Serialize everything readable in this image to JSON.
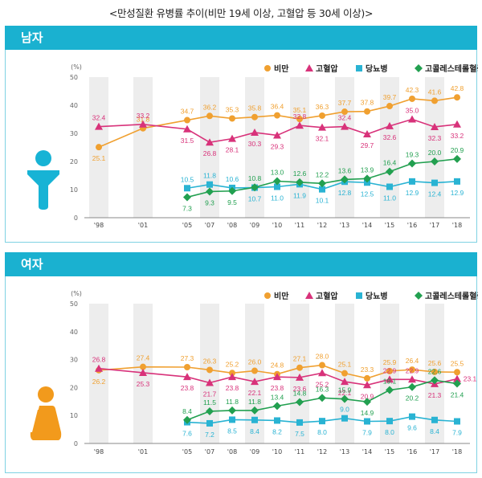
{
  "title": "<만성질환 유병률 추이(비만 19세 이상, 고혈압 등 30세 이상)>",
  "colors": {
    "header": "#1ab1d0",
    "obesity": "#f0a030",
    "hypertension": "#d8327a",
    "diabetes": "#29b3d3",
    "hypercholesterolemia": "#22a050",
    "male_icon": "#17b3d5",
    "female_icon": "#f29a1c",
    "band": "#ededed"
  },
  "chart_data": [
    {
      "type": "line",
      "panel": "남자",
      "icon": "male-person-icon",
      "x": [
        "'98",
        "'01",
        "'05",
        "'07",
        "'08",
        "'09",
        "'10",
        "'11",
        "'12",
        "'13",
        "'14",
        "'15",
        "'16",
        "'17",
        "'18"
      ],
      "y_unit": "(%)",
      "ylim": [
        0,
        50
      ],
      "yticks": [
        "0",
        "10",
        "20",
        "30",
        "40",
        "50"
      ],
      "legend_position": "top-right",
      "series": [
        {
          "name": "비만",
          "marker": "circle",
          "values": [
            25.1,
            31.8,
            34.7,
            36.2,
            35.3,
            35.8,
            36.4,
            35.1,
            36.3,
            37.7,
            37.8,
            39.7,
            42.3,
            41.6,
            42.8
          ],
          "labels": [
            "25.1",
            "31.8",
            "34.7",
            "36.2",
            "35.3",
            "35.8",
            "36.4",
            "35.1",
            "36.3",
            "37.7",
            "37.8",
            "39.7",
            "42.3",
            "41.6",
            "42.8"
          ]
        },
        {
          "name": "고혈압",
          "marker": "triangle",
          "values": [
            32.4,
            33.2,
            31.5,
            26.8,
            28.1,
            30.3,
            29.3,
            32.8,
            32.1,
            32.4,
            29.7,
            32.6,
            35.0,
            32.3,
            33.2
          ],
          "labels": [
            "32.4",
            "33.2",
            "31.5",
            "26.8",
            "28.1",
            "30.3",
            "29.3",
            "32.8",
            "32.1",
            "32.4",
            "29.7",
            "32.6",
            "35.0",
            "32.3",
            "33.2"
          ]
        },
        {
          "name": "당뇨병",
          "marker": "square",
          "values": [
            null,
            null,
            10.5,
            11.8,
            10.6,
            10.7,
            11.0,
            11.9,
            10.1,
            12.8,
            12.5,
            11.0,
            12.9,
            12.4,
            12.9
          ],
          "labels": [
            "",
            "",
            "10.5",
            "11.8",
            "10.6",
            "10.7",
            "11.0",
            "11.9",
            "10.1",
            "12.8",
            "12.5",
            "11.0",
            "12.9",
            "12.4",
            "12.9"
          ]
        },
        {
          "name": "고콜레스테롤혈증",
          "marker": "diamond",
          "values": [
            null,
            null,
            7.3,
            9.3,
            9.5,
            10.8,
            13.0,
            12.6,
            12.2,
            13.6,
            13.9,
            16.4,
            19.3,
            20.0,
            20.9
          ],
          "labels": [
            "",
            "",
            "7.3",
            "9.3",
            "9.5",
            "10.8",
            "13.0",
            "12.6",
            "12.2",
            "13.6",
            "13.9",
            "16.4",
            "19.3",
            "20.0",
            "20.9"
          ]
        }
      ]
    },
    {
      "type": "line",
      "panel": "여자",
      "icon": "female-person-icon",
      "x": [
        "'98",
        "'01",
        "'05",
        "'07",
        "'08",
        "'09",
        "'10",
        "'11",
        "'12",
        "'13",
        "'14",
        "'15",
        "'16",
        "'17",
        "'18"
      ],
      "y_unit": "(%)",
      "ylim": [
        0,
        50
      ],
      "yticks": [
        "0",
        "10",
        "20",
        "30",
        "40",
        "50"
      ],
      "legend_position": "top-right",
      "series": [
        {
          "name": "비만",
          "marker": "circle",
          "values": [
            26.2,
            27.4,
            27.3,
            26.3,
            25.2,
            26.0,
            24.8,
            27.1,
            28.0,
            25.1,
            23.3,
            25.9,
            26.4,
            25.6,
            25.5
          ],
          "labels": [
            "26.2",
            "27.4",
            "27.3",
            "26.3",
            "25.2",
            "26.0",
            "24.8",
            "27.1",
            "28.0",
            "25.1",
            "23.3",
            "25.9",
            "26.4",
            "25.6",
            "25.5"
          ]
        },
        {
          "name": "고혈압",
          "marker": "triangle",
          "values": [
            26.8,
            25.3,
            23.8,
            21.7,
            23.8,
            22.1,
            23.8,
            23.6,
            25.2,
            22.1,
            20.9,
            22.9,
            22.9,
            21.3,
            23.1
          ],
          "labels": [
            "26.8",
            "25.3",
            "23.8",
            "21.7",
            "23.8",
            "22.1",
            "23.8",
            "23.6",
            "25.2",
            "22.1",
            "20.9",
            "22.9",
            "22.9",
            "21.3",
            "23.1"
          ]
        },
        {
          "name": "당뇨병",
          "marker": "square",
          "values": [
            null,
            null,
            7.6,
            7.2,
            8.5,
            8.4,
            8.2,
            7.5,
            8.0,
            9.0,
            7.9,
            8.0,
            9.6,
            8.4,
            7.9
          ],
          "labels": [
            "",
            "",
            "7.6",
            "7.2",
            "8.5",
            "8.4",
            "8.2",
            "7.5",
            "8.0",
            "9.0",
            "7.9",
            "8.0",
            "9.6",
            "8.4",
            "7.9"
          ]
        },
        {
          "name": "고콜레스테롤혈증",
          "marker": "diamond",
          "values": [
            null,
            null,
            8.4,
            11.5,
            11.8,
            11.8,
            13.4,
            14.8,
            16.3,
            15.9,
            14.9,
            19.1,
            20.2,
            22.6,
            21.4
          ],
          "labels": [
            "",
            "",
            "8.4",
            "11.5",
            "11.8",
            "11.8",
            "13.4",
            "14.8",
            "16.3",
            "15.9",
            "14.9",
            "19.1",
            "20.2",
            "22.6",
            "21.4"
          ]
        }
      ]
    }
  ]
}
